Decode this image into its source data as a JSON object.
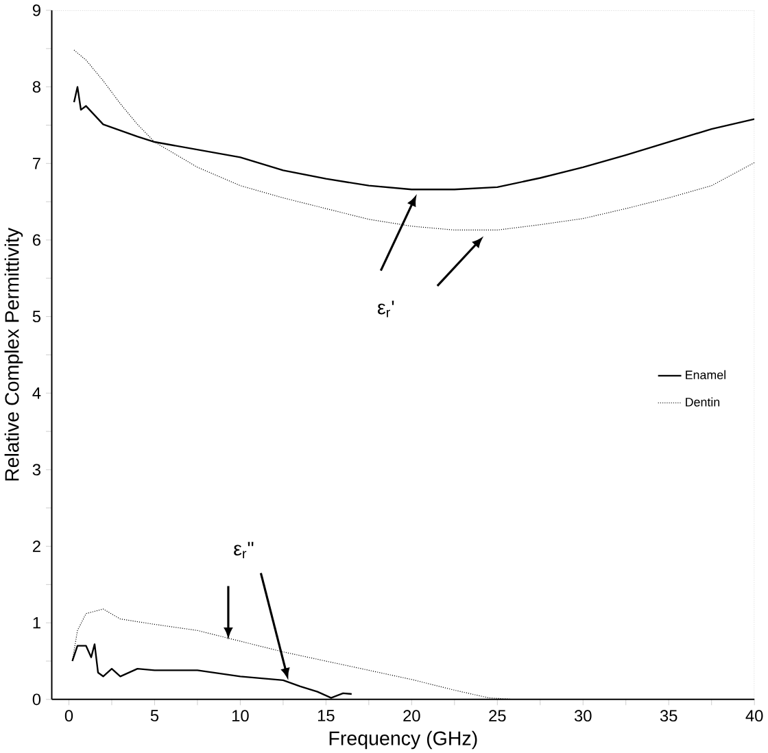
{
  "chart_data": {
    "type": "line",
    "xlabel": "Frequency (GHz)",
    "ylabel": "Relative Complex Permittivity",
    "xlim": [
      -1,
      40
    ],
    "ylim": [
      0,
      9
    ],
    "xticks": [
      0,
      {
        "value": 2.5,
        "label": null
      },
      5,
      {
        "value": 7.5,
        "label": null
      },
      10,
      {
        "value": 12.5,
        "label": null
      },
      15,
      {
        "value": 17.5,
        "label": null
      },
      20,
      {
        "value": 22.5,
        "label": null
      },
      25,
      {
        "value": 27.5,
        "label": null
      },
      30,
      {
        "value": 32.5,
        "label": null
      },
      35,
      {
        "value": 37.5,
        "label": null
      },
      40
    ],
    "yticks": [
      0,
      {
        "value": 0.5,
        "label": null
      },
      1,
      {
        "value": 1.5,
        "label": null
      },
      2,
      {
        "value": 2.5,
        "label": null
      },
      3,
      {
        "value": 3.5,
        "label": null
      },
      4,
      {
        "value": 4.5,
        "label": null
      },
      5,
      {
        "value": 5.5,
        "label": null
      },
      6,
      {
        "value": 6.5,
        "label": null
      },
      7,
      {
        "value": 7.5,
        "label": null
      },
      8,
      {
        "value": 8.5,
        "label": null
      },
      9
    ],
    "grid": false,
    "legend": "right",
    "marker": "none",
    "annotations": [
      "ε$_{r}$'",
      "ε$_{r}$\""
    ],
    "series": [
      {
        "name": "Enamel",
        "color": "#000000",
        "line_style": "solid",
        "x": [
          0.3,
          0.5,
          0.7,
          1,
          2,
          4,
          5,
          7.5,
          10,
          12.5,
          15,
          17.5,
          20,
          22.5,
          25,
          27.5,
          30,
          32.5,
          35,
          37.5,
          40
        ],
        "values": [
          7.8,
          8.0,
          7.7,
          7.75,
          7.51,
          7.35,
          7.28,
          7.18,
          7.08,
          6.91,
          6.8,
          6.71,
          6.66,
          6.66,
          6.69,
          6.81,
          6.95,
          7.11,
          7.28,
          7.45,
          7.58
        ]
      },
      {
        "name": "Dentin",
        "color": "#000000",
        "line_style": "dotted",
        "x": [
          0.3,
          1,
          2,
          3,
          4,
          5,
          7.5,
          10,
          12.5,
          15,
          17.5,
          20,
          22.5,
          25,
          27.5,
          30,
          32.5,
          35,
          37.5,
          40
        ],
        "values": [
          8.48,
          8.35,
          8.08,
          7.78,
          7.51,
          7.28,
          6.95,
          6.71,
          6.55,
          6.41,
          6.27,
          6.18,
          6.13,
          6.13,
          6.2,
          6.28,
          6.41,
          6.55,
          6.71,
          7.01
        ]
      },
      {
        "color": "#000000",
        "line_style": "solid",
        "x": [
          0.2,
          0.5,
          1,
          1.3,
          1.5,
          1.7,
          2,
          2.5,
          3,
          4,
          5,
          7.5,
          10,
          12.5,
          13.5,
          14.5,
          15.3,
          16,
          16.5
        ],
        "values": [
          0.5,
          0.7,
          0.7,
          0.55,
          0.72,
          0.35,
          0.3,
          0.4,
          0.3,
          0.4,
          0.38,
          0.38,
          0.3,
          0.25,
          0.17,
          0.1,
          0.02,
          0.08,
          0.07
        ]
      },
      {
        "color": "#000000",
        "line_style": "dotted",
        "x": [
          0.2,
          0.5,
          1,
          2,
          3,
          5,
          7.5,
          10,
          12.5,
          15,
          17.5,
          20,
          22.5,
          24.5,
          26
        ],
        "values": [
          0.5,
          0.9,
          1.12,
          1.18,
          1.05,
          0.98,
          0.9,
          0.76,
          0.62,
          0.5,
          0.38,
          0.26,
          0.12,
          0.02,
          0
        ]
      }
    ]
  }
}
